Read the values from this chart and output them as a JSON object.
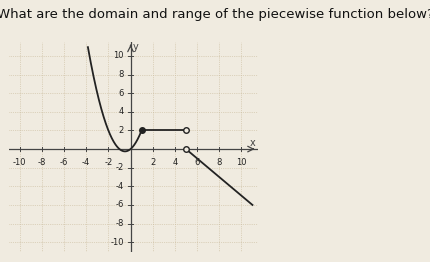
{
  "title": "What are the domain and range of the piecewise function below?",
  "title_fontsize": 9.5,
  "bg_color": "#f0ebe0",
  "grid_color": "#c8b898",
  "axis_color": "#444444",
  "curve_color": "#222222",
  "xlim": [
    -11,
    11.5
  ],
  "ylim": [
    -11,
    11.5
  ],
  "xticks": [
    -10,
    -8,
    -6,
    -4,
    -2,
    2,
    4,
    6,
    8,
    10
  ],
  "yticks": [
    -10,
    -8,
    -6,
    -4,
    -2,
    2,
    4,
    6,
    8,
    10
  ],
  "tick_fontsize": 6,
  "dot_filled_color": "#222222",
  "dot_open_color": "#f0ebe0",
  "dot_open_edge": "#222222",
  "lw": 1.3
}
